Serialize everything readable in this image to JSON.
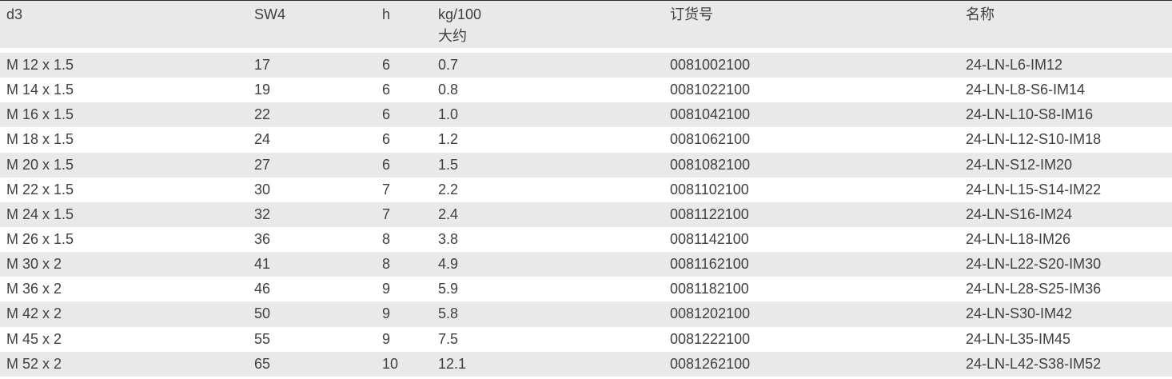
{
  "table": {
    "columns": [
      {
        "key": "d3",
        "label": "d3",
        "sublabel": ""
      },
      {
        "key": "sw4",
        "label": "SW4",
        "sublabel": ""
      },
      {
        "key": "h",
        "label": "h",
        "sublabel": ""
      },
      {
        "key": "kg100",
        "label": "kg/100",
        "sublabel": "大约"
      },
      {
        "key": "order_no",
        "label": "订货号",
        "sublabel": ""
      },
      {
        "key": "name",
        "label": "名称",
        "sublabel": ""
      }
    ],
    "rows": [
      {
        "d3": "M 12 x 1.5",
        "sw4": "17",
        "h": "6",
        "kg100": "0.7",
        "order_no": "0081002100",
        "name": "24-LN-L6-IM12"
      },
      {
        "d3": "M 14 x 1.5",
        "sw4": "19",
        "h": "6",
        "kg100": "0.8",
        "order_no": "0081022100",
        "name": "24-LN-L8-S6-IM14"
      },
      {
        "d3": "M 16 x 1.5",
        "sw4": "22",
        "h": "6",
        "kg100": "1.0",
        "order_no": "0081042100",
        "name": "24-LN-L10-S8-IM16"
      },
      {
        "d3": "M 18 x 1.5",
        "sw4": "24",
        "h": "6",
        "kg100": "1.2",
        "order_no": "0081062100",
        "name": "24-LN-L12-S10-IM18"
      },
      {
        "d3": "M 20 x 1.5",
        "sw4": "27",
        "h": "6",
        "kg100": "1.5",
        "order_no": "0081082100",
        "name": "24-LN-S12-IM20"
      },
      {
        "d3": "M 22 x 1.5",
        "sw4": "30",
        "h": "7",
        "kg100": "2.2",
        "order_no": "0081102100",
        "name": "24-LN-L15-S14-IM22"
      },
      {
        "d3": "M 24 x 1.5",
        "sw4": "32",
        "h": "7",
        "kg100": "2.4",
        "order_no": "0081122100",
        "name": "24-LN-S16-IM24"
      },
      {
        "d3": "M 26 x 1.5",
        "sw4": "36",
        "h": "8",
        "kg100": "3.8",
        "order_no": "0081142100",
        "name": "24-LN-L18-IM26"
      },
      {
        "d3": "M 30 x 2",
        "sw4": "41",
        "h": "8",
        "kg100": "4.9",
        "order_no": "0081162100",
        "name": "24-LN-L22-S20-IM30"
      },
      {
        "d3": "M 36 x 2",
        "sw4": "46",
        "h": "9",
        "kg100": "5.9",
        "order_no": "0081182100",
        "name": "24-LN-L28-S25-IM36"
      },
      {
        "d3": "M 42 x 2",
        "sw4": "50",
        "h": "9",
        "kg100": "5.8",
        "order_no": "0081202100",
        "name": "24-LN-S30-IM42"
      },
      {
        "d3": "M 45 x 2",
        "sw4": "55",
        "h": "9",
        "kg100": "7.5",
        "order_no": "0081222100",
        "name": "24-LN-L35-IM45"
      },
      {
        "d3": "M 52 x 2",
        "sw4": "65",
        "h": "10",
        "kg100": "12.1",
        "order_no": "0081262100",
        "name": "24-LN-L42-S38-IM52"
      }
    ]
  },
  "colors": {
    "stripe": "#e9e9e9",
    "header_bg": "#e9e9e9",
    "text": "#404040",
    "top_border": "#2b2b2b",
    "row_white": "#ffffff"
  }
}
